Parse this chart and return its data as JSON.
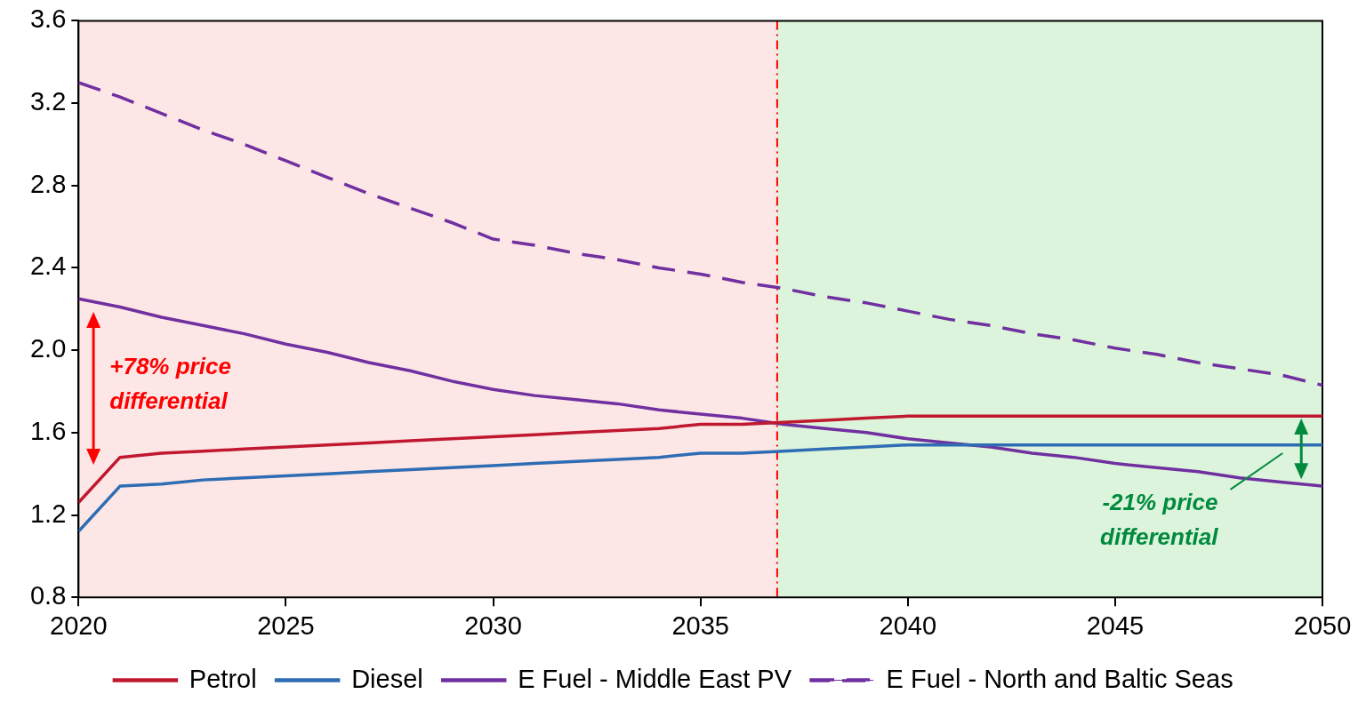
{
  "chart_data": {
    "type": "line",
    "x": [
      2020,
      2021,
      2022,
      2023,
      2024,
      2025,
      2026,
      2027,
      2028,
      2029,
      2030,
      2031,
      2032,
      2033,
      2034,
      2035,
      2036,
      2037,
      2038,
      2039,
      2040,
      2041,
      2042,
      2043,
      2044,
      2045,
      2046,
      2047,
      2048,
      2049,
      2050
    ],
    "series": [
      {
        "name": "Petrol",
        "color": "#c0182f",
        "values": [
          1.26,
          1.48,
          1.5,
          1.51,
          1.52,
          1.53,
          1.54,
          1.55,
          1.56,
          1.57,
          1.58,
          1.59,
          1.6,
          1.61,
          1.62,
          1.64,
          1.64,
          1.65,
          1.66,
          1.67,
          1.68,
          1.68,
          1.68,
          1.68,
          1.68,
          1.68,
          1.68,
          1.68,
          1.68,
          1.68,
          1.68
        ]
      },
      {
        "name": "Diesel",
        "color": "#2e6db4",
        "values": [
          1.12,
          1.34,
          1.35,
          1.37,
          1.38,
          1.39,
          1.4,
          1.41,
          1.42,
          1.43,
          1.44,
          1.45,
          1.46,
          1.47,
          1.48,
          1.5,
          1.5,
          1.51,
          1.52,
          1.53,
          1.54,
          1.54,
          1.54,
          1.54,
          1.54,
          1.54,
          1.54,
          1.54,
          1.54,
          1.54,
          1.54
        ]
      },
      {
        "name": "E Fuel - Middle East PV",
        "color": "#7030a0",
        "values": [
          2.25,
          2.21,
          2.16,
          2.12,
          2.08,
          2.03,
          1.99,
          1.94,
          1.9,
          1.85,
          1.81,
          1.78,
          1.76,
          1.74,
          1.71,
          1.69,
          1.67,
          1.64,
          1.62,
          1.6,
          1.57,
          1.55,
          1.53,
          1.5,
          1.48,
          1.45,
          1.43,
          1.41,
          1.38,
          1.36,
          1.34
        ]
      },
      {
        "name": "E Fuel - North and Baltic Seas",
        "color": "#7030a0",
        "line_style": "dashed",
        "values": [
          3.3,
          3.23,
          3.15,
          3.07,
          3.0,
          2.92,
          2.84,
          2.76,
          2.69,
          2.62,
          2.54,
          2.51,
          2.47,
          2.44,
          2.4,
          2.37,
          2.33,
          2.3,
          2.26,
          2.23,
          2.19,
          2.15,
          2.12,
          2.08,
          2.05,
          2.01,
          1.98,
          1.94,
          1.91,
          1.88,
          1.83
        ]
      }
    ],
    "xlim": [
      2020,
      2050
    ],
    "xticks": [
      2020,
      2025,
      2030,
      2035,
      2040,
      2045,
      2050
    ],
    "ylim": [
      0.8,
      3.6
    ],
    "yticks": [
      0.8,
      1.2,
      1.6,
      {
        "value": 2,
        "label": "2.0"
      },
      2.4,
      2.8,
      3.2,
      3.6
    ],
    "bands": [
      {
        "axis": "x",
        "from": 2020,
        "to": 2036.85,
        "color": "#fde6e6"
      },
      {
        "axis": "x",
        "from": 2036.85,
        "to": 2050,
        "color": "#ddf4dc"
      }
    ],
    "ref_lines": [
      {
        "axis": "x",
        "value": 2036.85,
        "color": "#ff0000",
        "line_style": "dashdot"
      }
    ],
    "annotations": [
      "+78% price differential",
      "-21% price differential"
    ],
    "legend": "bottom",
    "grid": false,
    "line_style": "solid",
    "marker": "none"
  }
}
